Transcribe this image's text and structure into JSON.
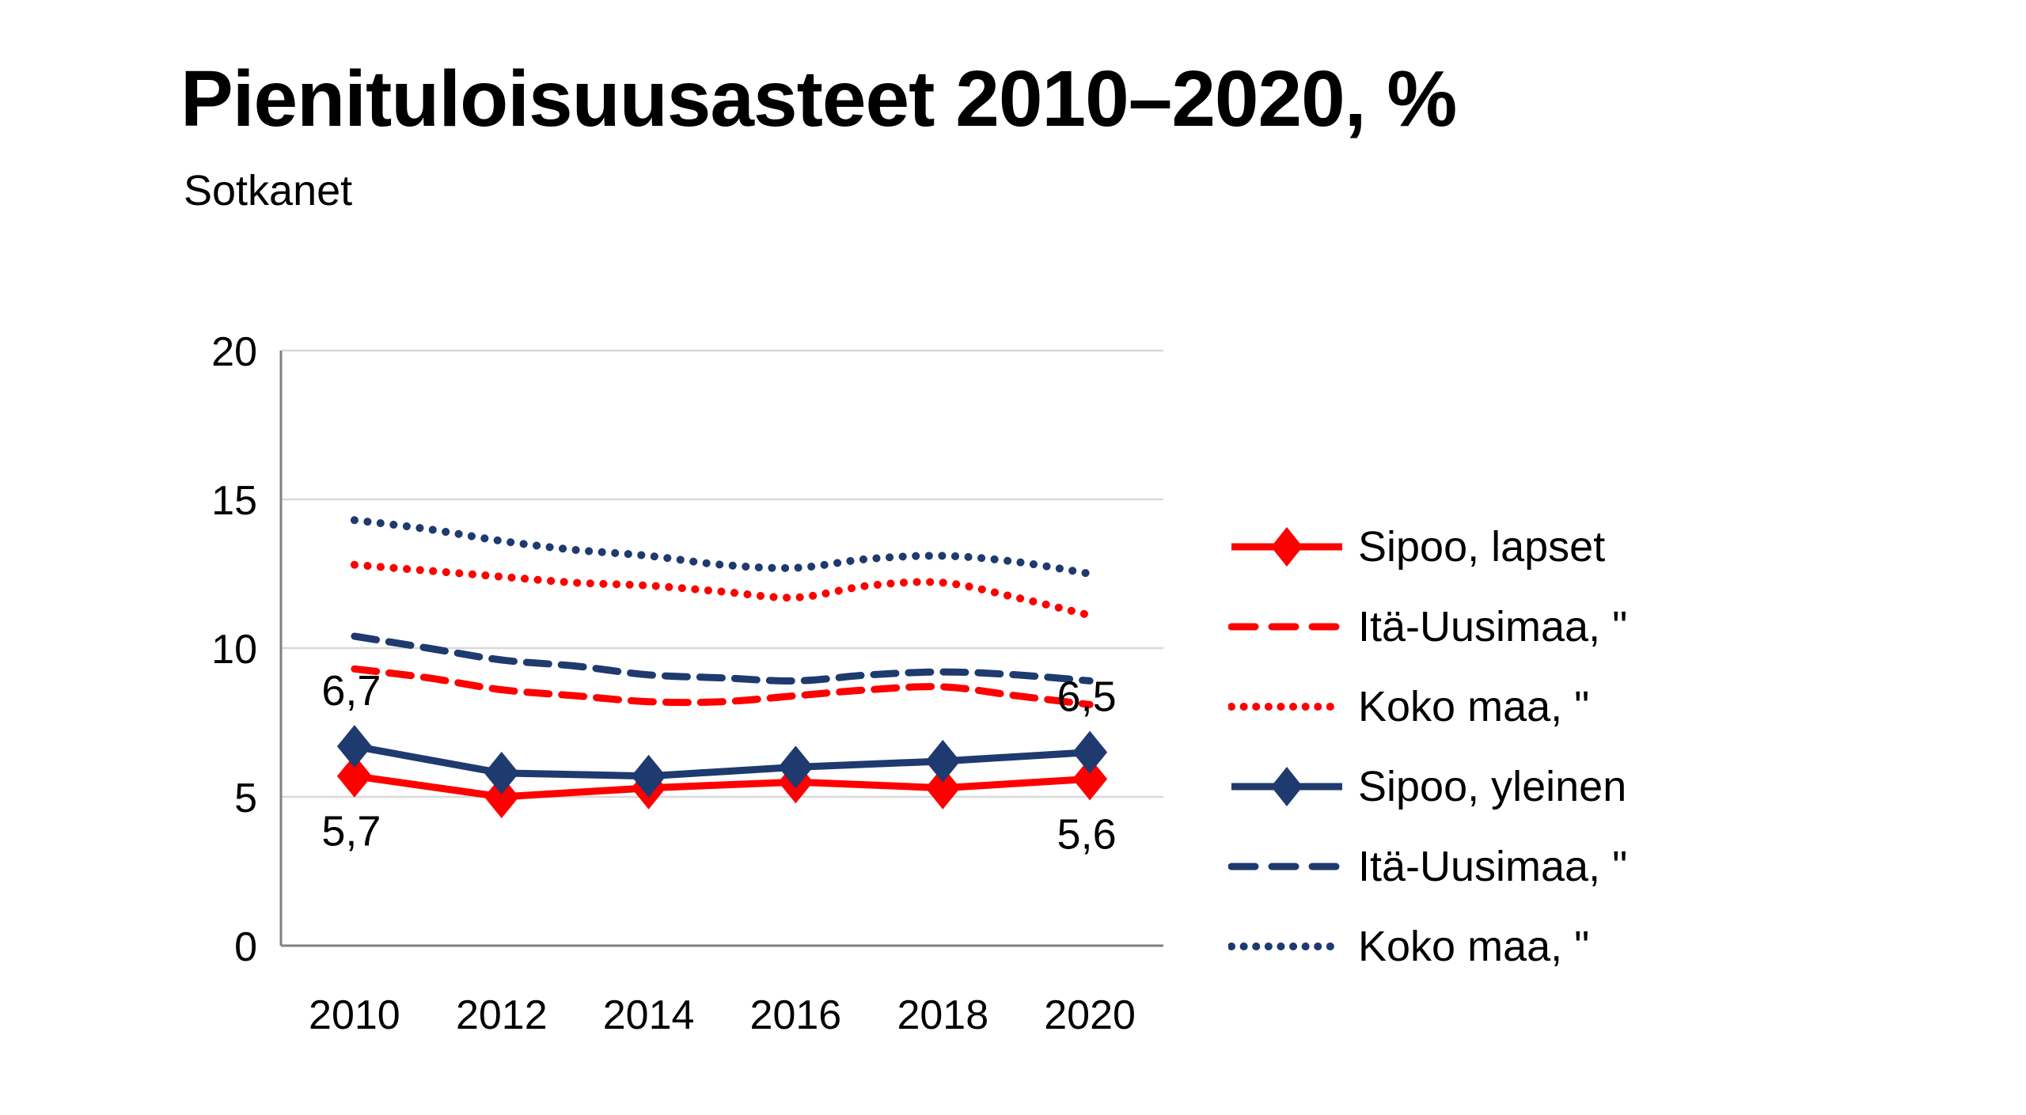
{
  "title": "Pienituloisuusasteet 2010–2020, %",
  "subtitle": "Sotkanet",
  "colors": {
    "red": "#FF0000",
    "navy": "#1E3A6E",
    "gridline": "#D9D9D9",
    "axis": "#808080",
    "text": "#000000",
    "background": "#FFFFFF"
  },
  "chart_data": {
    "type": "line",
    "title": "Pienituloisuusasteet 2010–2020, %",
    "subtitle": "Sotkanet",
    "xlabel": "",
    "ylabel": "",
    "ylim": [
      0,
      20
    ],
    "y_ticks": [
      0,
      5,
      10,
      15,
      20
    ],
    "x_categories": [
      2010,
      2012,
      2014,
      2016,
      2018,
      2020
    ],
    "grid": "horizontal",
    "legend_position": "right",
    "series": [
      {
        "name": "Sipoo, lapset",
        "color": "red",
        "style": "solid",
        "marker": "diamond",
        "smooth": false,
        "x": [
          2010,
          2012,
          2014,
          2016,
          2018,
          2020
        ],
        "values": [
          5.7,
          5.0,
          5.3,
          5.5,
          5.3,
          5.6
        ]
      },
      {
        "name": "Itä-Uusimaa, \"",
        "color": "red",
        "style": "dashed",
        "marker": "none",
        "smooth": true,
        "x": [
          2010,
          2011,
          2012,
          2013,
          2014,
          2015,
          2016,
          2017,
          2018,
          2019,
          2020
        ],
        "values": [
          9.3,
          9.0,
          8.6,
          8.4,
          8.2,
          8.2,
          8.4,
          8.6,
          8.7,
          8.4,
          8.1
        ]
      },
      {
        "name": "Koko maa, \"",
        "color": "red",
        "style": "dotted",
        "marker": "none",
        "smooth": true,
        "x": [
          2010,
          2011,
          2012,
          2013,
          2014,
          2015,
          2016,
          2017,
          2018,
          2019,
          2020
        ],
        "values": [
          12.8,
          12.6,
          12.4,
          12.2,
          12.1,
          11.9,
          11.7,
          12.1,
          12.2,
          11.7,
          11.1
        ]
      },
      {
        "name": "Sipoo, yleinen",
        "color": "navy",
        "style": "solid",
        "marker": "diamond",
        "smooth": false,
        "x": [
          2010,
          2012,
          2014,
          2016,
          2018,
          2020
        ],
        "values": [
          6.7,
          5.8,
          5.7,
          6.0,
          6.2,
          6.5
        ]
      },
      {
        "name": "Itä-Uusimaa, \"",
        "color": "navy",
        "style": "dashed",
        "marker": "none",
        "smooth": true,
        "x": [
          2010,
          2011,
          2012,
          2013,
          2014,
          2015,
          2016,
          2017,
          2018,
          2019,
          2020
        ],
        "values": [
          10.4,
          10.0,
          9.6,
          9.4,
          9.1,
          9.0,
          8.9,
          9.1,
          9.2,
          9.1,
          8.9
        ]
      },
      {
        "name": "Koko maa, \"",
        "color": "navy",
        "style": "dotted",
        "marker": "none",
        "smooth": true,
        "x": [
          2010,
          2011,
          2012,
          2013,
          2014,
          2015,
          2016,
          2017,
          2018,
          2019,
          2020
        ],
        "values": [
          14.3,
          14.0,
          13.6,
          13.3,
          13.1,
          12.8,
          12.7,
          13.0,
          13.1,
          12.9,
          12.5
        ]
      }
    ],
    "annotations": [
      {
        "text": "6,7",
        "year": 2010,
        "value": 6.7,
        "placement": "above"
      },
      {
        "text": "5,7",
        "year": 2010,
        "value": 5.7,
        "placement": "below"
      },
      {
        "text": "6,5",
        "year": 2020,
        "value": 6.5,
        "placement": "above"
      },
      {
        "text": "5,6",
        "year": 2020,
        "value": 5.6,
        "placement": "below"
      }
    ]
  }
}
